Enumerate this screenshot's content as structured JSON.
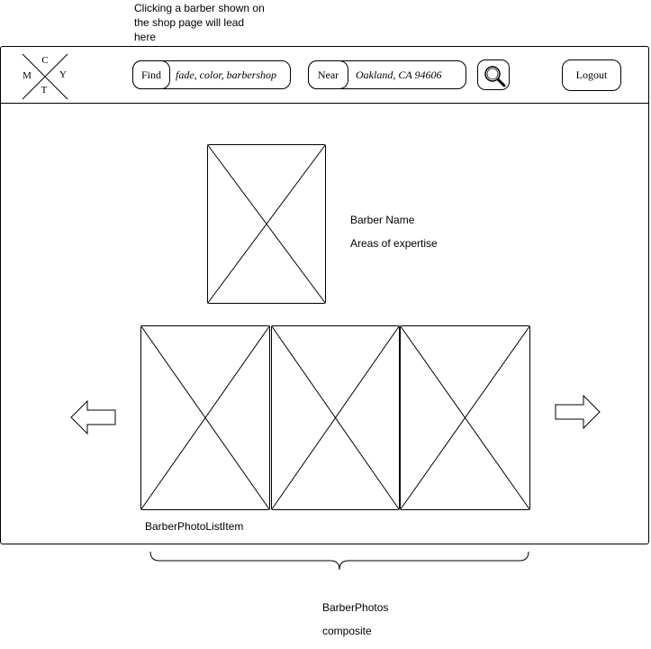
{
  "annotations": {
    "top_note": "Clicking a barber shown on\nthe shop page will lead\nhere",
    "list_item_label": "BarberPhotoListItem",
    "composite_label_line1": "BarberPhotos",
    "composite_label_line2": "composite"
  },
  "logo": {
    "letters": {
      "top": "C",
      "left": "M",
      "right": "Y",
      "bottom": "T"
    }
  },
  "header": {
    "find": {
      "label": "Find",
      "value": "fade, color, barbershop"
    },
    "near": {
      "label": "Near",
      "value": "Oakland, CA 94606"
    },
    "search_icon": "magnifier-icon",
    "logout_label": "Logout"
  },
  "barber": {
    "name": "Barber Name",
    "expertise": "Areas of expertise"
  },
  "carousel": {
    "prev_icon": "left-arrow-icon",
    "next_icon": "right-arrow-icon",
    "photo_count": 3
  }
}
